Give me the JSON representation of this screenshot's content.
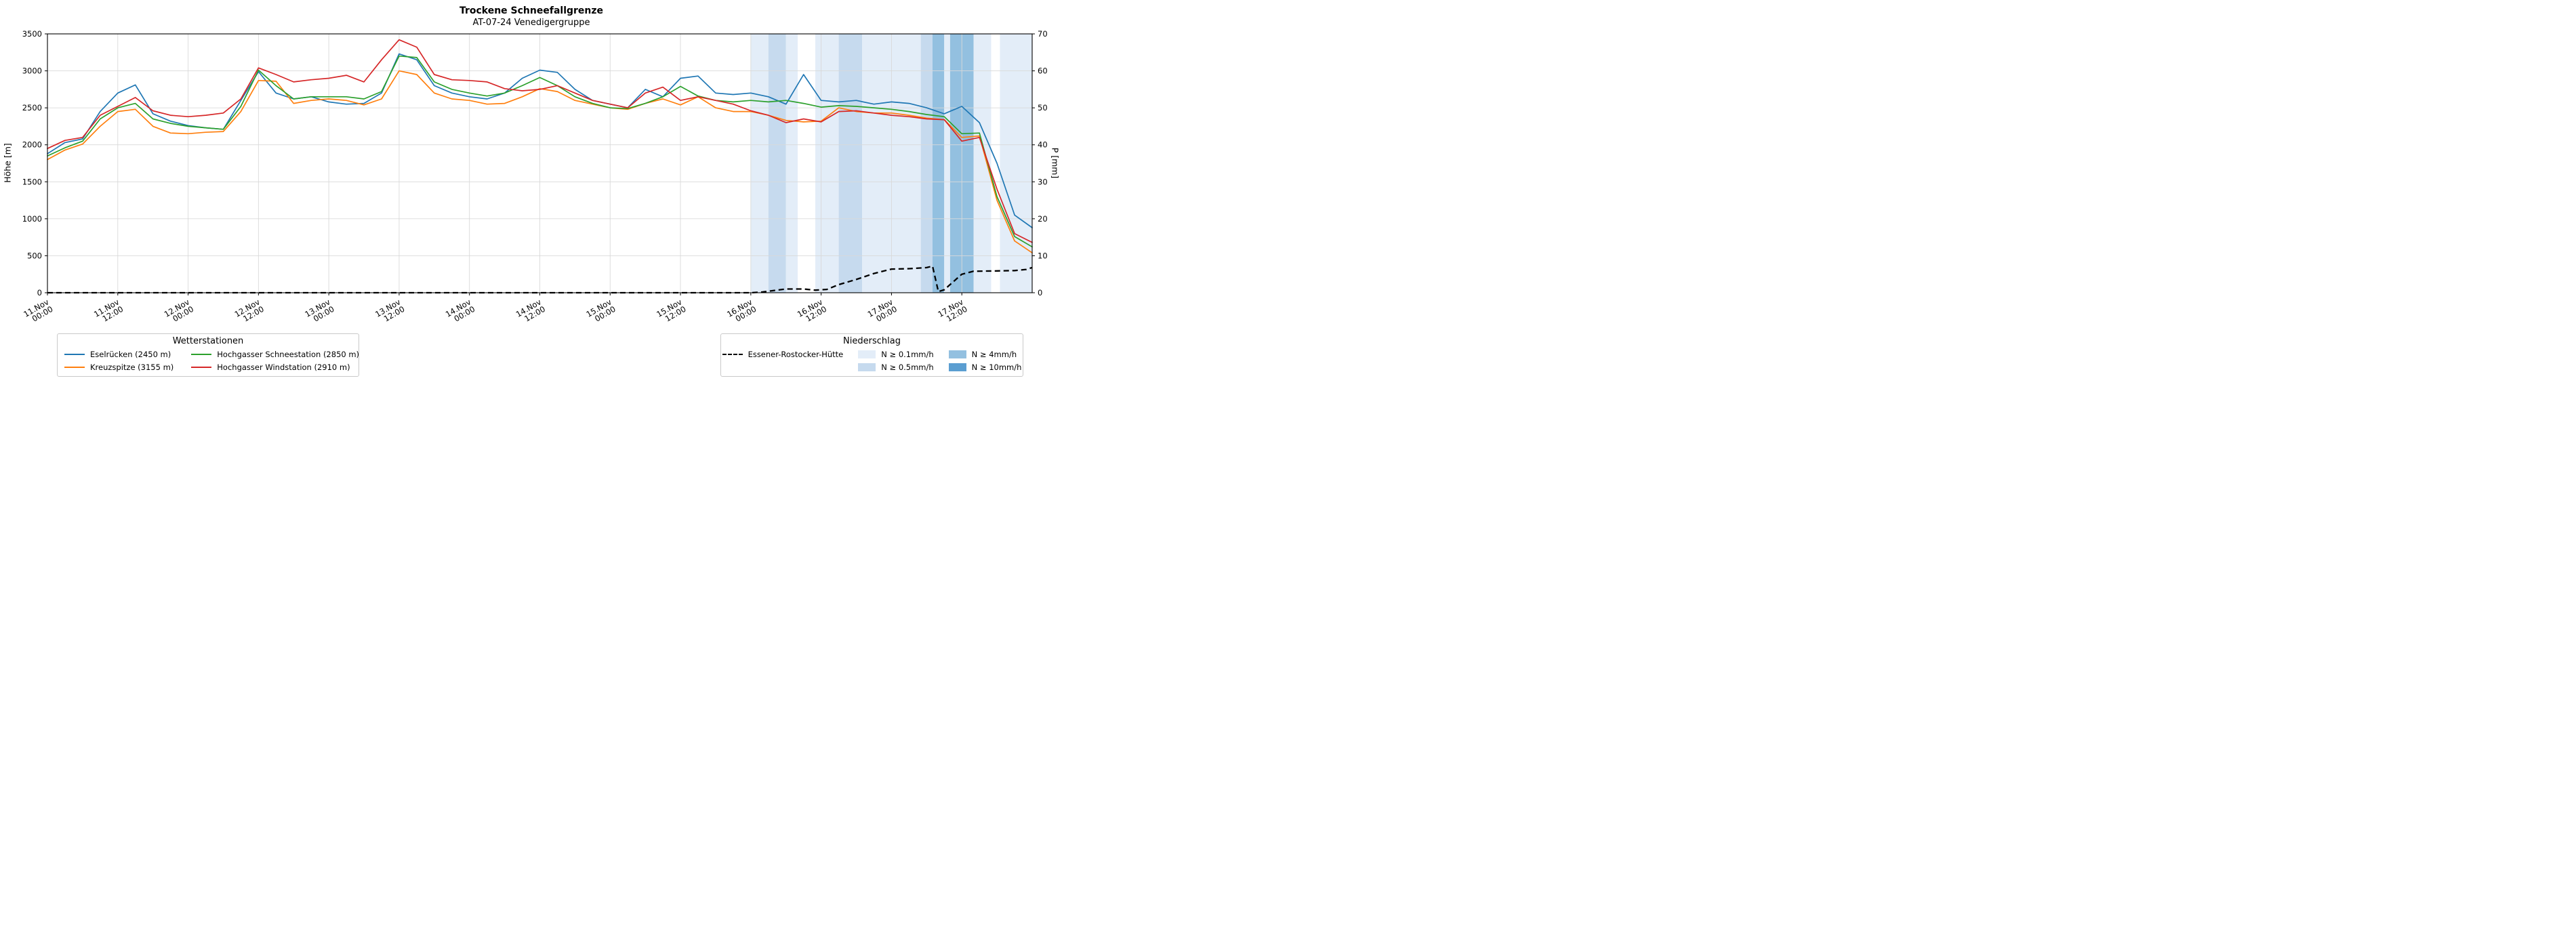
{
  "page": {
    "title": "Trockene Schneefallgrenze",
    "subtitle": "AT-07-24 Venedigergruppe"
  },
  "axes": {
    "ylabel_left": "Höhe [m]",
    "ylabel_right": "P [mm]"
  },
  "legend_stations": {
    "title": "Wetterstationen",
    "items": [
      {
        "label": "Eselrücken (2450 m)",
        "color": "#1f77b4"
      },
      {
        "label": "Kreuzspitze (3155 m)",
        "color": "#ff7f0e"
      },
      {
        "label": "Hochgasser Schneestation (2850 m)",
        "color": "#2ca02c"
      },
      {
        "label": "Hochgasser Windstation (2910 m)",
        "color": "#d62728"
      }
    ]
  },
  "legend_precip": {
    "title": "Niederschlag",
    "line_item": {
      "label": "Essener-Rostocker-Hütte",
      "color": "#000000",
      "dashed": true
    },
    "patch_items": [
      {
        "label": "N ≥ 0.1mm/h",
        "color": "#e3edf8"
      },
      {
        "label": "N ≥ 0.5mm/h",
        "color": "#c6daee"
      },
      {
        "label": "N ≥ 4mm/h",
        "color": "#93c0e0"
      },
      {
        "label": "N ≥ 10mm/h",
        "color": "#5b9ed1"
      }
    ]
  },
  "chart_data": {
    "type": "line",
    "title": "Trockene Schneefallgrenze",
    "subtitle": "AT-07-24 Venedigergruppe",
    "grid": true,
    "x_unit": "hours since 11.Nov 00:00",
    "x_range": [
      0,
      168
    ],
    "ylim_left": [
      0,
      3500
    ],
    "ylim_right": [
      0,
      70
    ],
    "yticks_left": [
      0,
      500,
      1000,
      1500,
      2000,
      2500,
      3000,
      3500
    ],
    "yticks_right": [
      0,
      10,
      20,
      30,
      40,
      50,
      60,
      70
    ],
    "xticks": [
      {
        "hour": 0,
        "line1": "11.Nov",
        "line2": "00:00"
      },
      {
        "hour": 12,
        "line1": "11.Nov",
        "line2": "12:00"
      },
      {
        "hour": 24,
        "line1": "12.Nov",
        "line2": "00:00"
      },
      {
        "hour": 36,
        "line1": "12.Nov",
        "line2": "12:00"
      },
      {
        "hour": 48,
        "line1": "13.Nov",
        "line2": "00:00"
      },
      {
        "hour": 60,
        "line1": "13.Nov",
        "line2": "12:00"
      },
      {
        "hour": 72,
        "line1": "14.Nov",
        "line2": "00:00"
      },
      {
        "hour": 84,
        "line1": "14.Nov",
        "line2": "12:00"
      },
      {
        "hour": 96,
        "line1": "15.Nov",
        "line2": "00:00"
      },
      {
        "hour": 108,
        "line1": "15.Nov",
        "line2": "12:00"
      },
      {
        "hour": 120,
        "line1": "16.Nov",
        "line2": "00:00"
      },
      {
        "hour": 132,
        "line1": "16.Nov",
        "line2": "12:00"
      },
      {
        "hour": 144,
        "line1": "17.Nov",
        "line2": "00:00"
      },
      {
        "hour": 156,
        "line1": "17.Nov",
        "line2": "12:00"
      }
    ],
    "hours": [
      0,
      3,
      6,
      9,
      12,
      15,
      18,
      21,
      24,
      27,
      30,
      33,
      36,
      39,
      42,
      45,
      48,
      51,
      54,
      57,
      60,
      63,
      66,
      69,
      72,
      75,
      78,
      81,
      84,
      87,
      90,
      93,
      96,
      99,
      102,
      105,
      108,
      111,
      114,
      117,
      120,
      123,
      126,
      129,
      132,
      135,
      138,
      141,
      144,
      147,
      150,
      153,
      156,
      159,
      162,
      165,
      168
    ],
    "series": [
      {
        "name": "Eselrücken (2450 m)",
        "color": "#1f77b4",
        "axis": "left",
        "values": [
          1880,
          2030,
          2080,
          2450,
          2700,
          2810,
          2420,
          2320,
          2260,
          2230,
          2210,
          2600,
          2990,
          2700,
          2620,
          2650,
          2580,
          2550,
          2560,
          2700,
          3230,
          3150,
          2800,
          2700,
          2650,
          2620,
          2700,
          2900,
          3010,
          2980,
          2750,
          2600,
          2550,
          2500,
          2750,
          2650,
          2900,
          2930,
          2700,
          2680,
          2700,
          2650,
          2550,
          2950,
          2600,
          2580,
          2600,
          2550,
          2580,
          2560,
          2500,
          2420,
          2520,
          2300,
          1750,
          1050,
          880
        ]
      },
      {
        "name": "Kreuzspitze (3155 m)",
        "color": "#ff7f0e",
        "axis": "left",
        "values": [
          1800,
          1930,
          2010,
          2250,
          2450,
          2480,
          2250,
          2160,
          2150,
          2170,
          2180,
          2450,
          2870,
          2860,
          2560,
          2600,
          2620,
          2600,
          2540,
          2620,
          3000,
          2950,
          2700,
          2620,
          2600,
          2550,
          2560,
          2650,
          2760,
          2720,
          2600,
          2550,
          2500,
          2480,
          2560,
          2620,
          2540,
          2650,
          2500,
          2450,
          2450,
          2400,
          2330,
          2310,
          2320,
          2500,
          2450,
          2430,
          2430,
          2400,
          2360,
          2340,
          2100,
          2120,
          1250,
          700,
          540
        ]
      },
      {
        "name": "Hochgasser Schneestation (2850 m)",
        "color": "#2ca02c",
        "axis": "left",
        "values": [
          1850,
          1960,
          2050,
          2350,
          2500,
          2560,
          2350,
          2290,
          2250,
          2230,
          2210,
          2520,
          3010,
          2800,
          2620,
          2650,
          2650,
          2650,
          2620,
          2720,
          3200,
          3180,
          2850,
          2750,
          2700,
          2660,
          2700,
          2800,
          2910,
          2800,
          2650,
          2560,
          2500,
          2490,
          2560,
          2650,
          2790,
          2660,
          2600,
          2580,
          2600,
          2580,
          2600,
          2560,
          2510,
          2530,
          2520,
          2500,
          2480,
          2450,
          2410,
          2380,
          2150,
          2160,
          1300,
          760,
          620
        ]
      },
      {
        "name": "Hochgasser Windstation (2910 m)",
        "color": "#d62728",
        "axis": "left",
        "values": [
          1950,
          2060,
          2100,
          2400,
          2520,
          2640,
          2460,
          2400,
          2380,
          2400,
          2430,
          2620,
          3040,
          2950,
          2850,
          2880,
          2900,
          2940,
          2850,
          3150,
          3420,
          3320,
          2950,
          2880,
          2870,
          2850,
          2760,
          2730,
          2750,
          2800,
          2700,
          2600,
          2550,
          2500,
          2700,
          2780,
          2600,
          2650,
          2600,
          2550,
          2460,
          2400,
          2300,
          2350,
          2310,
          2450,
          2460,
          2430,
          2400,
          2380,
          2350,
          2340,
          2050,
          2100,
          1400,
          800,
          680
        ]
      }
    ],
    "precip_line": {
      "name": "Essener-Rostocker-Hütte",
      "color": "#000000",
      "axis": "right",
      "dashed": true,
      "x": [
        0,
        96,
        114,
        118,
        120,
        122,
        124,
        126,
        129,
        131,
        133,
        135,
        138,
        141,
        144,
        147,
        150,
        151,
        152,
        153,
        156,
        158,
        162,
        165,
        167,
        168
      ],
      "values": [
        0,
        0,
        0,
        0,
        0,
        0.2,
        0.6,
        1.0,
        1.0,
        0.7,
        0.9,
        2.2,
        3.6,
        5.2,
        6.4,
        6.5,
        6.8,
        7.2,
        0.3,
        0.8,
        5.0,
        5.8,
        5.9,
        6.0,
        6.3,
        6.8
      ]
    },
    "precip_bands": [
      {
        "start": 120,
        "end": 123,
        "level": 1
      },
      {
        "start": 123,
        "end": 126,
        "level": 2
      },
      {
        "start": 126,
        "end": 128,
        "level": 1
      },
      {
        "start": 131,
        "end": 135,
        "level": 1
      },
      {
        "start": 135,
        "end": 139,
        "level": 2
      },
      {
        "start": 139,
        "end": 149,
        "level": 1
      },
      {
        "start": 149,
        "end": 151,
        "level": 2
      },
      {
        "start": 151,
        "end": 153,
        "level": 3
      },
      {
        "start": 153,
        "end": 154,
        "level": 1
      },
      {
        "start": 154,
        "end": 158,
        "level": 3
      },
      {
        "start": 158,
        "end": 161,
        "level": 1
      },
      {
        "start": 162.5,
        "end": 168,
        "level": 1
      }
    ],
    "band_levels": [
      "N ≥ 0.1mm/h",
      "N ≥ 0.5mm/h",
      "N ≥ 4mm/h",
      "N ≥ 10mm/h"
    ],
    "band_colors": [
      "#e3edf8",
      "#c6daee",
      "#93c0e0",
      "#5b9ed1"
    ]
  }
}
